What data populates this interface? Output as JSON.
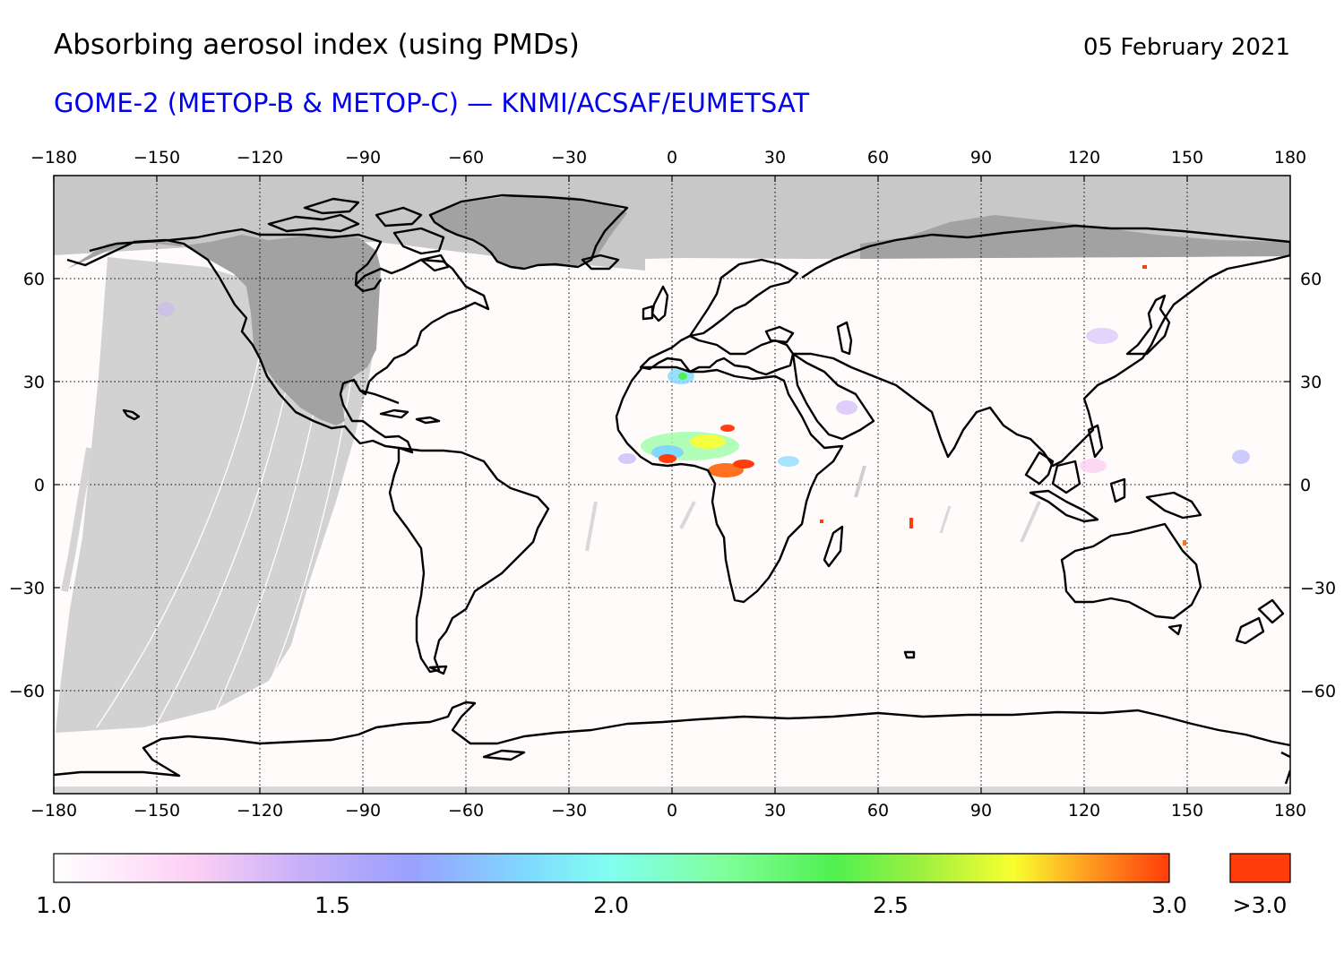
{
  "header": {
    "title": "Absorbing aerosol index (using PMDs)",
    "date": "05 February 2021",
    "subtitle": "GOME-2 (METOP-B & METOP-C) — KNMI/ACSAF/EUMETSAT"
  },
  "map": {
    "projection": "equirectangular",
    "lon_range": [
      -180,
      180
    ],
    "lat_range": [
      -90,
      90
    ],
    "lon_ticks": [
      "−180",
      "−150",
      "−120",
      "−90",
      "−60",
      "−30",
      "0",
      "30",
      "60",
      "90",
      "120",
      "150",
      "180"
    ],
    "lat_ticks": [
      "60",
      "30",
      "0",
      "−30",
      "−60"
    ],
    "gridlines": true,
    "colors": {
      "no_data_polar": "#c8c8c8",
      "no_data_gap": "#d0d0d0",
      "land_masked": "#a2a2a2",
      "coastline": "#000000",
      "background": "#fffbfb"
    }
  },
  "colorbar": {
    "min": 1.0,
    "max": 3.0,
    "labels": [
      "1.0",
      "1.5",
      "2.0",
      "2.5",
      "3.0"
    ],
    "overflow_label": ">3.0",
    "overflow_color": "#ff3c0a",
    "stops": [
      "#ffffff",
      "#fcd0f4",
      "#c8b0f8",
      "#9aa0ff",
      "#80d8ff",
      "#80fff0",
      "#80ff9c",
      "#50f050",
      "#a0f040",
      "#f8ff30",
      "#ff9820",
      "#ff3c0a"
    ]
  }
}
